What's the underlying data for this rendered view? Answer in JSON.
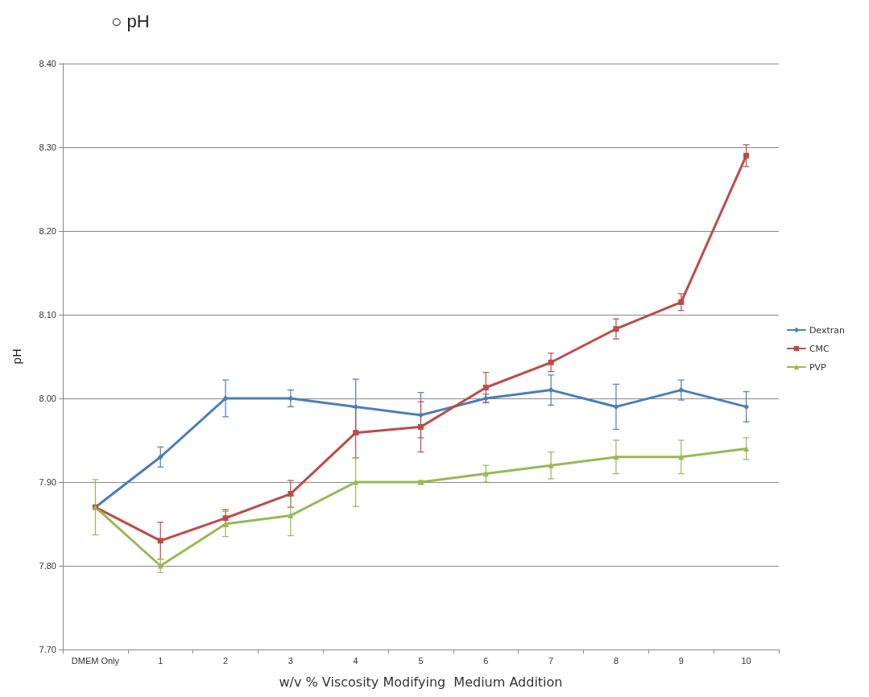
{
  "chart_data": {
    "type": "line",
    "title": "○ pH",
    "xlabel": "w/v % Viscosity Modifying  Medium Addition",
    "ylabel": "pH",
    "categories": [
      "DMEM Only",
      "1",
      "2",
      "3",
      "4",
      "5",
      "6",
      "7",
      "8",
      "9",
      "10"
    ],
    "series": [
      {
        "name": "Dextran",
        "color": "#4a7ebb",
        "marker": "diamond",
        "values": [
          7.87,
          7.93,
          8.0,
          8.0,
          7.99,
          7.98,
          8.0,
          8.01,
          7.99,
          8.01,
          7.99
        ],
        "errors": [
          null,
          0.012,
          0.022,
          0.01,
          0.033,
          0.027,
          0.005,
          0.018,
          0.027,
          0.012,
          0.018
        ]
      },
      {
        "name": "CMC",
        "color": "#be4b48",
        "marker": "square",
        "values": [
          7.87,
          7.83,
          7.857,
          7.886,
          7.959,
          7.966,
          8.013,
          8.043,
          8.083,
          8.115,
          8.29
        ],
        "errors": [
          null,
          0.022,
          0.01,
          0.016,
          0.03,
          0.03,
          0.018,
          0.011,
          0.012,
          0.01,
          0.013
        ]
      },
      {
        "name": "PVP",
        "color": "#98b954",
        "marker": "triangle",
        "values": [
          7.87,
          7.8,
          7.85,
          7.86,
          7.9,
          7.9,
          7.91,
          7.92,
          7.93,
          7.93,
          7.94
        ],
        "errors": [
          0.033,
          0.008,
          0.015,
          0.024,
          0.029,
          0.002,
          0.01,
          0.016,
          0.02,
          0.02,
          0.013
        ]
      }
    ],
    "ylim": [
      7.7,
      8.4
    ],
    "yticks": [
      {
        "value": 7.7,
        "label": "7.70"
      },
      {
        "value": 7.8,
        "label": "7.80"
      },
      {
        "value": 7.9,
        "label": "7.90"
      },
      {
        "value": 8.0,
        "label": "8.00"
      },
      {
        "value": 8.1,
        "label": "8.10"
      },
      {
        "value": 8.2,
        "label": "8.20"
      },
      {
        "value": 8.3,
        "label": "8.30"
      },
      {
        "value": 8.4,
        "label": "8.40"
      }
    ],
    "grid": "y",
    "legend": "right",
    "line_style": "solid"
  }
}
